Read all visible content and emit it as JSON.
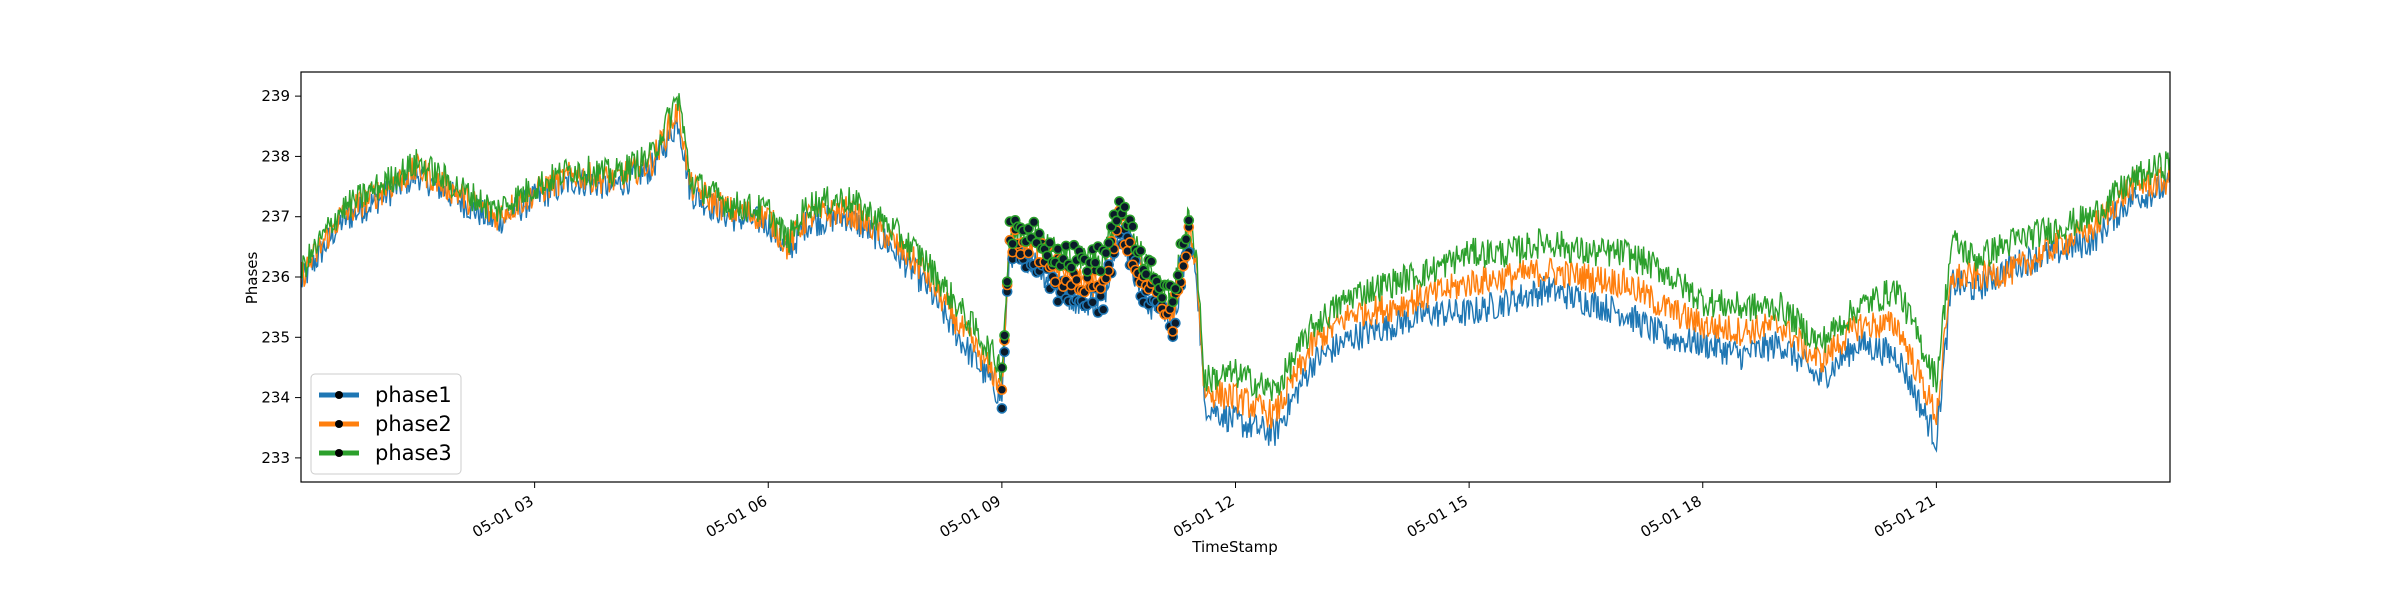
{
  "chart_data": {
    "type": "line",
    "title": "",
    "xlabel": "TimeStamp",
    "ylabel": "Phases",
    "grid": false,
    "legend_position": "lower-left",
    "x_unit": "hours",
    "xlim": [
      0,
      24
    ],
    "ylim": [
      232.6,
      239.4
    ],
    "x_ticks": [
      {
        "value": 3,
        "label": "05-01 03"
      },
      {
        "value": 6,
        "label": "05-01 06"
      },
      {
        "value": 9,
        "label": "05-01 09"
      },
      {
        "value": 12,
        "label": "05-01 12"
      },
      {
        "value": 15,
        "label": "05-01 15"
      },
      {
        "value": 18,
        "label": "05-01 18"
      },
      {
        "value": 21,
        "label": "05-01 21"
      }
    ],
    "y_ticks": [
      233,
      234,
      235,
      236,
      237,
      238,
      239
    ],
    "highlighted_markers_x_range": [
      9.0,
      11.4
    ],
    "series": [
      {
        "name": "phase1",
        "color": "#1f77b4",
        "x": [
          0,
          0.5,
          1,
          1.5,
          2,
          2.5,
          3,
          3.5,
          4,
          4.5,
          4.85,
          5,
          5.5,
          6,
          6.25,
          6.5,
          7,
          7.5,
          8,
          8.5,
          9,
          9.1,
          9.4,
          9.7,
          10,
          10.3,
          10.5,
          10.7,
          10.9,
          11.0,
          11.2,
          11.4,
          11.5,
          11.6,
          12,
          12.5,
          13,
          13.5,
          14,
          14.5,
          15,
          15.5,
          16,
          16.5,
          17,
          17.5,
          18,
          18.5,
          19,
          19.5,
          20,
          20.5,
          21,
          21.2,
          21.5,
          22,
          22.5,
          23,
          23.5,
          24
        ],
        "y": [
          235.9,
          236.9,
          237.3,
          237.7,
          237.3,
          236.9,
          237.3,
          237.6,
          237.5,
          237.8,
          238.6,
          237.4,
          237.0,
          236.9,
          236.4,
          236.9,
          237.0,
          236.6,
          235.9,
          234.9,
          234.0,
          236.4,
          236.3,
          235.8,
          235.6,
          235.6,
          236.9,
          236.1,
          235.5,
          235.6,
          235.2,
          236.6,
          236.1,
          233.9,
          233.6,
          233.4,
          234.6,
          235.0,
          235.2,
          235.4,
          235.4,
          235.6,
          235.8,
          235.6,
          235.4,
          235.0,
          234.9,
          234.7,
          234.9,
          234.3,
          234.9,
          234.7,
          233.3,
          235.9,
          235.8,
          236.2,
          236.4,
          236.6,
          237.3,
          237.5
        ]
      },
      {
        "name": "phase2",
        "color": "#ff7f0e",
        "x": [
          0,
          0.5,
          1,
          1.5,
          2,
          2.5,
          3,
          3.5,
          4,
          4.5,
          4.85,
          5,
          5.5,
          6,
          6.25,
          6.5,
          7,
          7.5,
          8,
          8.5,
          9,
          9.1,
          9.4,
          9.7,
          10,
          10.3,
          10.5,
          10.7,
          10.9,
          11.0,
          11.2,
          11.4,
          11.5,
          11.6,
          12,
          12.5,
          13,
          13.5,
          14,
          14.5,
          15,
          15.5,
          16,
          16.5,
          17,
          17.5,
          18,
          18.5,
          19,
          19.5,
          20,
          20.5,
          21,
          21.2,
          21.5,
          22,
          22.5,
          23,
          23.5,
          24
        ],
        "y": [
          236.0,
          237.0,
          237.4,
          237.8,
          237.4,
          237.0,
          237.4,
          237.7,
          237.6,
          237.9,
          238.8,
          237.5,
          237.1,
          237.0,
          236.5,
          237.0,
          237.1,
          236.7,
          236.1,
          235.1,
          234.2,
          236.6,
          236.6,
          236.1,
          235.9,
          235.9,
          237.0,
          236.3,
          235.8,
          235.7,
          235.3,
          236.8,
          236.2,
          234.1,
          234.0,
          233.7,
          234.9,
          235.4,
          235.5,
          235.7,
          235.9,
          236.0,
          236.1,
          236.0,
          235.9,
          235.5,
          235.2,
          235.1,
          235.2,
          234.6,
          235.2,
          235.2,
          233.7,
          236.0,
          236.0,
          236.1,
          236.5,
          236.8,
          237.5,
          237.6
        ]
      },
      {
        "name": "phase3",
        "color": "#2ca02c",
        "x": [
          0,
          0.5,
          1,
          1.5,
          2,
          2.5,
          3,
          3.5,
          4,
          4.5,
          4.85,
          5,
          5.5,
          6,
          6.25,
          6.5,
          7,
          7.5,
          8,
          8.5,
          9,
          9.1,
          9.4,
          9.7,
          10,
          10.3,
          10.5,
          10.7,
          10.9,
          11.0,
          11.2,
          11.4,
          11.5,
          11.6,
          12,
          12.5,
          13,
          13.5,
          14,
          14.5,
          15,
          15.5,
          16,
          16.5,
          17,
          17.5,
          18,
          18.5,
          19,
          19.5,
          20,
          20.5,
          21,
          21.2,
          21.5,
          22,
          22.5,
          23,
          23.5,
          24
        ],
        "y": [
          236.1,
          237.1,
          237.5,
          237.9,
          237.5,
          237.1,
          237.5,
          237.8,
          237.7,
          238.0,
          239.0,
          237.6,
          237.2,
          237.1,
          236.6,
          237.2,
          237.3,
          236.9,
          236.3,
          235.4,
          234.5,
          236.7,
          236.8,
          236.4,
          236.3,
          236.3,
          237.2,
          236.6,
          236.1,
          235.8,
          235.7,
          237.0,
          236.4,
          234.3,
          234.4,
          234.1,
          235.2,
          235.7,
          235.9,
          236.1,
          236.4,
          236.4,
          236.6,
          236.4,
          236.4,
          236.1,
          235.6,
          235.5,
          235.5,
          234.9,
          235.5,
          235.8,
          234.3,
          236.6,
          236.3,
          236.6,
          236.8,
          237.0,
          237.6,
          237.9
        ]
      }
    ]
  }
}
